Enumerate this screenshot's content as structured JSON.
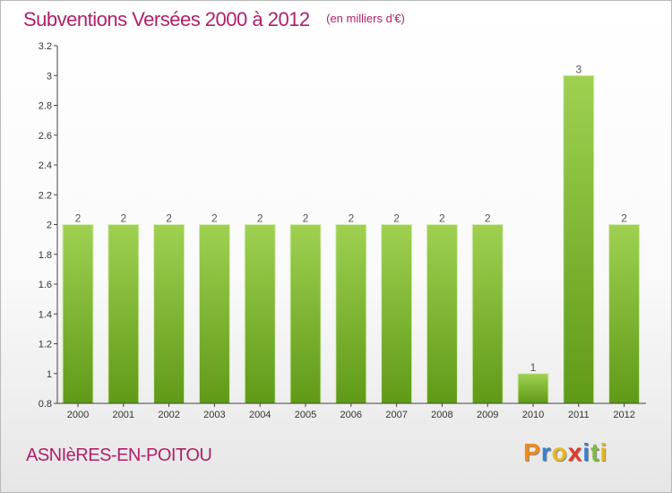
{
  "header": {
    "title": "Subventions Versées 2000 à 2012",
    "subtitle": "(en milliers d'€)"
  },
  "footer": {
    "commune": "ASNIèRES-EN-POITOU",
    "brand_letters": [
      {
        "char": "P",
        "color": "#f08a1c"
      },
      {
        "char": "r",
        "color": "#3a7fd0"
      },
      {
        "char": "o",
        "color": "#e8b820"
      },
      {
        "char": "x",
        "color": "#e03a2a"
      },
      {
        "char": "i",
        "color": "#3a7fd0"
      },
      {
        "char": "t",
        "color": "#7cbf3a"
      },
      {
        "char": "i",
        "color": "#e8b820"
      }
    ]
  },
  "colors": {
    "bar_light": "#9fd151",
    "bar_dark": "#5f9a17",
    "bar_edge": "#d8ecb8",
    "accent": "#b01f6a",
    "axis": "#444444"
  },
  "chart_data": {
    "type": "bar",
    "title": "Subventions Versées 2000 à 2012",
    "subtitle": "(en milliers d'€)",
    "categories": [
      "2000",
      "2001",
      "2002",
      "2003",
      "2004",
      "2005",
      "2006",
      "2007",
      "2008",
      "2009",
      "2010",
      "2011",
      "2012"
    ],
    "values": [
      2,
      2,
      2,
      2,
      2,
      2,
      2,
      2,
      2,
      2,
      1,
      3,
      2
    ],
    "data_labels": [
      "2",
      "2",
      "2",
      "2",
      "2",
      "2",
      "2",
      "2",
      "2",
      "2",
      "1",
      "3",
      "2"
    ],
    "ylim": [
      0.8,
      3.2
    ],
    "yticks": [
      0.8,
      1,
      1.2,
      1.4,
      1.6,
      1.8,
      2,
      2.2,
      2.4,
      2.6,
      2.8,
      3,
      3.2
    ],
    "ytick_labels": [
      "0.8",
      "1",
      "1.2",
      "1.4",
      "1.6",
      "1.8",
      "2",
      "2.2",
      "2.4",
      "2.6",
      "2.8",
      "3",
      "3.2"
    ],
    "xlabel": "",
    "ylabel": "",
    "grid": false,
    "legend": "none"
  }
}
